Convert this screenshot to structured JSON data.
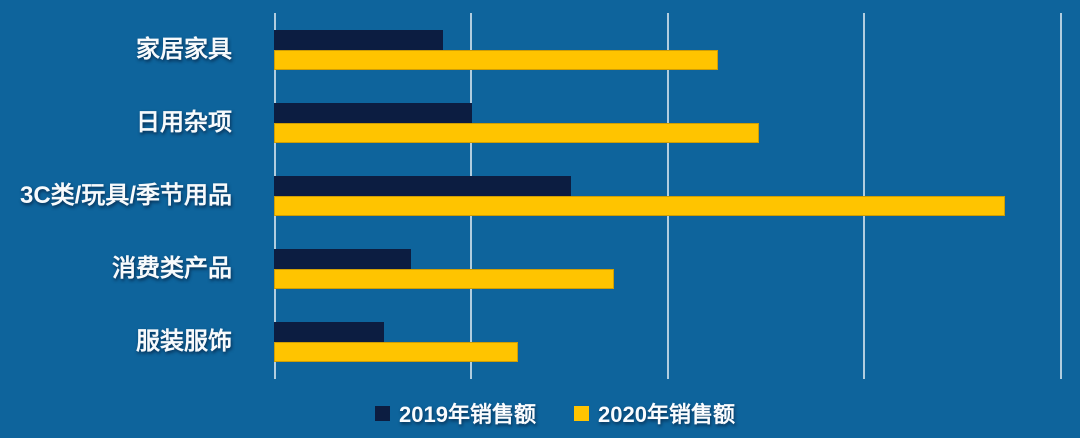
{
  "colors": {
    "background": "#0E649C",
    "series_2019": "#0C1D41",
    "series_2020": "#FFC400",
    "gridline": "#D5E4EE",
    "label_text": "#F7FAFC"
  },
  "chart_data": {
    "type": "bar",
    "orientation": "horizontal",
    "title": "",
    "xlabel": "",
    "ylabel": "",
    "categories": [
      "家居家具",
      "日用杂项",
      "3C类/玩具/季节用品",
      "消费类产品",
      "服装服饰"
    ],
    "series": [
      {
        "name": "2019年销售额",
        "color": "#0C1D41",
        "values": [
          0.86,
          1.01,
          1.51,
          0.7,
          0.56
        ]
      },
      {
        "name": "2020年销售额",
        "color": "#FFC400",
        "values": [
          2.26,
          2.47,
          3.72,
          1.73,
          1.24
        ]
      }
    ],
    "xlim": [
      0,
      4.1
    ],
    "gridline_interval": 1,
    "grid": true,
    "axis_tick_labels_visible": false,
    "value_labels_visible": false,
    "legend_position": "bottom"
  },
  "legend": {
    "items": [
      {
        "label": "2019年销售额",
        "color": "#0C1D41"
      },
      {
        "label": "2020年销售额",
        "color": "#FFC400"
      }
    ]
  }
}
